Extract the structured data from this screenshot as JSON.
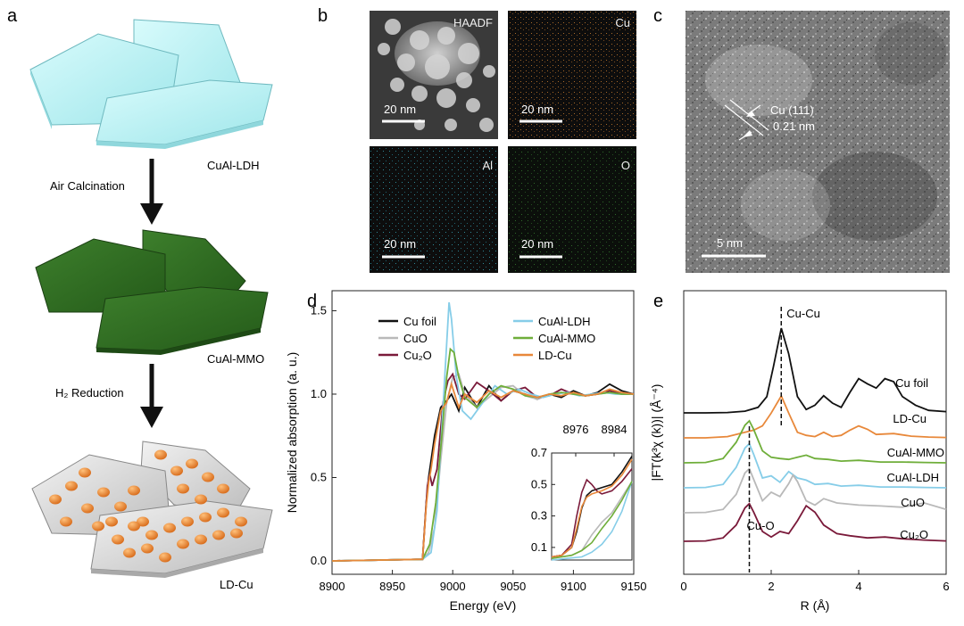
{
  "panel_labels": {
    "a": "a",
    "b": "b",
    "c": "c",
    "d": "d",
    "e": "e"
  },
  "panel_a": {
    "materials": [
      "CuAl-LDH",
      "CuAl-MMO",
      "LD-Cu"
    ],
    "steps": [
      "Air Calcination",
      "H₂ Reduction"
    ],
    "colors": {
      "ldh": "#bdf2f4",
      "mmo": "#2f6b22",
      "ldcu_plate": "#d5d5d5",
      "particle": "#f0903a"
    }
  },
  "panel_b": {
    "tiles": [
      {
        "label": "HAADF",
        "scale": "20 nm"
      },
      {
        "label": "Cu",
        "scale": "20 nm"
      },
      {
        "label": "Al",
        "scale": "20 nm"
      },
      {
        "label": "O",
        "scale": "20 nm"
      }
    ],
    "colors": {
      "Cu": "#c8823a",
      "Al": "#3aa6b8",
      "O": "#3f8f3a"
    }
  },
  "panel_c": {
    "annotation": "Cu (111)",
    "spacing": "0.21 nm",
    "scale": "5 nm"
  },
  "chart_data": [
    {
      "type": "line",
      "panel": "d",
      "xlabel": "Energy (eV)",
      "ylabel": "Normalized absorption (a. u.)",
      "xlim": [
        8900,
        9150
      ],
      "ylim": [
        -0.08,
        1.62
      ],
      "xticks": [
        8900,
        8950,
        9000,
        9050,
        9100,
        9150
      ],
      "yticks": [
        0.0,
        0.5,
        1.0,
        1.5
      ],
      "legend_placement": "top",
      "series": [
        {
          "name": "Cu foil",
          "color": "#111111",
          "x": [
            8900,
            8975,
            8978,
            8980,
            8982,
            8985,
            8990,
            8995,
            8999,
            9005,
            9010,
            9020,
            9030,
            9040,
            9050,
            9060,
            9070,
            9080,
            9090,
            9100,
            9110,
            9120,
            9130,
            9140,
            9150
          ],
          "y": [
            0,
            0.01,
            0.35,
            0.5,
            0.6,
            0.75,
            0.92,
            0.96,
            1.0,
            0.9,
            1.04,
            0.92,
            1.05,
            0.96,
            1.02,
            1.0,
            0.97,
            1.0,
            0.98,
            1.02,
            0.99,
            1.01,
            1.06,
            1.02,
            1.0
          ]
        },
        {
          "name": "CuO",
          "color": "#b9b9b9",
          "x": [
            8900,
            8975,
            8980,
            8985,
            8990,
            8995,
            9000,
            9005,
            9010,
            9020,
            9030,
            9040,
            9050,
            9060,
            9070,
            9080,
            9090,
            9100,
            9110,
            9120,
            9130,
            9140,
            9150
          ],
          "y": [
            0,
            0.01,
            0.05,
            0.2,
            0.6,
            0.95,
            1.1,
            1.12,
            1.0,
            0.92,
            0.98,
            1.04,
            1.05,
            0.99,
            0.97,
            1.0,
            1.01,
            1.0,
            0.99,
            1.0,
            1.01,
            1.0,
            1.0
          ]
        },
        {
          "name": "Cu₂O",
          "color": "#7a1a3a",
          "x": [
            8900,
            8975,
            8979,
            8981,
            8983,
            8987,
            8992,
            8996,
            9000,
            9005,
            9010,
            9020,
            9030,
            9040,
            9050,
            9060,
            9070,
            9080,
            9090,
            9100,
            9110,
            9120,
            9130,
            9140,
            9150
          ],
          "y": [
            0,
            0.01,
            0.45,
            0.52,
            0.45,
            0.55,
            0.95,
            1.08,
            1.12,
            1.0,
            0.97,
            1.07,
            1.02,
            0.96,
            1.02,
            1.04,
            0.98,
            0.99,
            1.03,
            1.0,
            0.99,
            1.0,
            1.02,
            1.0,
            1.0
          ]
        },
        {
          "name": "CuAl-LDH",
          "color": "#86cde8",
          "x": [
            8900,
            8975,
            8982,
            8987,
            8991,
            8995,
            8997,
            8999,
            9003,
            9008,
            9015,
            9025,
            9035,
            9045,
            9055,
            9065,
            9075,
            9085,
            9095,
            9105,
            9115,
            9125,
            9135,
            9150
          ],
          "y": [
            0,
            0.01,
            0.05,
            0.3,
            0.8,
            1.3,
            1.55,
            1.45,
            1.1,
            0.9,
            0.85,
            0.95,
            1.05,
            1.0,
            1.03,
            1.0,
            0.98,
            1.0,
            1.01,
            0.99,
            1.0,
            1.01,
            1.0,
            1.0
          ]
        },
        {
          "name": "CuAl-MMO",
          "color": "#6fae3a",
          "x": [
            8900,
            8975,
            8981,
            8986,
            8991,
            8995,
            8998,
            9001,
            9005,
            9010,
            9020,
            9030,
            9040,
            9050,
            9060,
            9070,
            9080,
            9090,
            9100,
            9110,
            9120,
            9130,
            9140,
            9150
          ],
          "y": [
            0,
            0.01,
            0.1,
            0.35,
            0.75,
            1.1,
            1.27,
            1.25,
            1.1,
            0.98,
            0.92,
            1.0,
            1.05,
            1.03,
            0.99,
            0.98,
            1.0,
            1.01,
            1.0,
            0.99,
            1.0,
            1.01,
            1.0,
            1.0
          ]
        },
        {
          "name": "LD-Cu",
          "color": "#e8883a",
          "x": [
            8900,
            8975,
            8978,
            8980,
            8982,
            8985,
            8990,
            8995,
            8999,
            9005,
            9010,
            9020,
            9030,
            9040,
            9050,
            9060,
            9070,
            9080,
            9090,
            9100,
            9110,
            9120,
            9130,
            9140,
            9150
          ],
          "y": [
            0,
            0.01,
            0.33,
            0.47,
            0.55,
            0.7,
            0.9,
            0.95,
            1.06,
            0.92,
            1.0,
            0.95,
            1.02,
            0.98,
            1.02,
            1.0,
            0.98,
            1.0,
            0.99,
            1.01,
            0.99,
            1.0,
            1.03,
            1.01,
            1.0
          ]
        }
      ],
      "inset": {
        "xlim": [
          8972,
          8988
        ],
        "ylim": [
          0.02,
          0.7
        ],
        "xticks": [
          8976,
          8984
        ],
        "yticks": [
          0.1,
          0.3,
          0.5,
          0.7
        ],
        "series": [
          {
            "name": "Cu foil",
            "x": [
              8972,
              8974,
              8976,
              8977,
              8978,
              8979,
              8980,
              8982,
              8984,
              8986,
              8988
            ],
            "y": [
              0.04,
              0.05,
              0.1,
              0.2,
              0.35,
              0.43,
              0.46,
              0.48,
              0.5,
              0.58,
              0.68
            ]
          },
          {
            "name": "CuO",
            "x": [
              8972,
              8976,
              8978,
              8980,
              8982,
              8984,
              8986,
              8988
            ],
            "y": [
              0.03,
              0.05,
              0.08,
              0.18,
              0.26,
              0.32,
              0.42,
              0.52
            ]
          },
          {
            "name": "Cu₂O",
            "x": [
              8972,
              8974,
              8976,
              8977,
              8978,
              8979,
              8980,
              8981,
              8982,
              8984,
              8986,
              8988
            ],
            "y": [
              0.04,
              0.05,
              0.12,
              0.3,
              0.45,
              0.53,
              0.5,
              0.46,
              0.44,
              0.46,
              0.52,
              0.6
            ]
          },
          {
            "name": "CuAl-LDH",
            "x": [
              8972,
              8978,
              8980,
              8982,
              8984,
              8986,
              8988
            ],
            "y": [
              0.02,
              0.04,
              0.07,
              0.12,
              0.2,
              0.33,
              0.52
            ]
          },
          {
            "name": "CuAl-MMO",
            "x": [
              8972,
              8976,
              8978,
              8980,
              8982,
              8984,
              8986,
              8988
            ],
            "y": [
              0.03,
              0.05,
              0.08,
              0.13,
              0.22,
              0.3,
              0.4,
              0.52
            ]
          },
          {
            "name": "LD-Cu",
            "x": [
              8972,
              8974,
              8976,
              8977,
              8978,
              8979,
              8980,
              8982,
              8984,
              8986,
              8988
            ],
            "y": [
              0.04,
              0.05,
              0.1,
              0.22,
              0.36,
              0.42,
              0.44,
              0.46,
              0.49,
              0.56,
              0.66
            ]
          }
        ]
      }
    },
    {
      "type": "line",
      "panel": "e",
      "xlabel": "R (Å)",
      "ylabel": "|FT(k³χ (k))| (Å⁻⁴)",
      "xlim": [
        0,
        6
      ],
      "xticks": [
        0,
        2,
        4,
        6
      ],
      "annotations": [
        "Cu-Cu",
        "Cu-O"
      ],
      "dashed_lines": [
        2.23,
        1.5
      ],
      "series": [
        {
          "name": "Cu foil",
          "color": "#111111",
          "offset": 5,
          "x": [
            0,
            0.5,
            1.0,
            1.4,
            1.7,
            1.9,
            2.05,
            2.23,
            2.4,
            2.6,
            2.8,
            3.0,
            3.2,
            3.4,
            3.6,
            3.8,
            4.0,
            4.2,
            4.4,
            4.6,
            4.8,
            5.0,
            5.3,
            5.6,
            6.0
          ],
          "y": [
            0.02,
            0.02,
            0.03,
            0.06,
            0.15,
            0.4,
            1.1,
            2.0,
            1.4,
            0.4,
            0.1,
            0.2,
            0.42,
            0.25,
            0.15,
            0.5,
            0.82,
            0.7,
            0.6,
            0.82,
            0.75,
            0.4,
            0.2,
            0.08,
            0.05
          ]
        },
        {
          "name": "LD-Cu",
          "color": "#e8883a",
          "offset": 4,
          "x": [
            0,
            0.5,
            1.0,
            1.4,
            1.6,
            1.8,
            2.0,
            2.23,
            2.4,
            2.6,
            2.8,
            3.0,
            3.2,
            3.4,
            3.6,
            3.8,
            4.0,
            4.2,
            4.4,
            4.8,
            5.2,
            5.6,
            6.0
          ],
          "y": [
            0.02,
            0.02,
            0.05,
            0.15,
            0.2,
            0.3,
            0.6,
            1.0,
            0.6,
            0.15,
            0.08,
            0.05,
            0.15,
            0.05,
            0.08,
            0.2,
            0.3,
            0.22,
            0.1,
            0.12,
            0.06,
            0.04,
            0.03
          ]
        },
        {
          "name": "CuAl-MMO",
          "color": "#6fae3a",
          "offset": 3,
          "x": [
            0,
            0.5,
            0.9,
            1.2,
            1.4,
            1.5,
            1.6,
            1.8,
            2.0,
            2.2,
            2.4,
            2.6,
            2.8,
            3.0,
            3.3,
            3.6,
            4.0,
            4.5,
            5.0,
            5.5,
            6.0
          ],
          "y": [
            0.02,
            0.03,
            0.12,
            0.5,
            0.9,
            1.0,
            0.8,
            0.3,
            0.15,
            0.12,
            0.1,
            0.15,
            0.2,
            0.12,
            0.1,
            0.06,
            0.08,
            0.04,
            0.04,
            0.03,
            0.02
          ]
        },
        {
          "name": "CuAl-LDH",
          "color": "#86cde8",
          "offset": 2,
          "x": [
            0,
            0.5,
            0.9,
            1.2,
            1.4,
            1.5,
            1.6,
            1.8,
            2.0,
            2.2,
            2.4,
            2.6,
            2.8,
            3.0,
            3.3,
            3.6,
            4.0,
            4.5,
            5.0,
            5.5,
            6.0
          ],
          "y": [
            0.02,
            0.03,
            0.1,
            0.5,
            0.95,
            1.05,
            0.8,
            0.25,
            0.3,
            0.15,
            0.4,
            0.25,
            0.2,
            0.1,
            0.12,
            0.06,
            0.08,
            0.04,
            0.04,
            0.03,
            0.02
          ]
        },
        {
          "name": "CuO",
          "color": "#b9b9b9",
          "offset": 1,
          "x": [
            0,
            0.5,
            0.9,
            1.2,
            1.4,
            1.5,
            1.6,
            1.8,
            2.0,
            2.2,
            2.4,
            2.5,
            2.6,
            2.8,
            3.0,
            3.2,
            3.5,
            4.0,
            4.5,
            5.0,
            5.5,
            6.0
          ],
          "y": [
            0.02,
            0.03,
            0.1,
            0.45,
            0.95,
            1.05,
            0.8,
            0.3,
            0.5,
            0.4,
            0.7,
            0.9,
            0.75,
            0.3,
            0.2,
            0.35,
            0.25,
            0.2,
            0.18,
            0.15,
            0.25,
            0.1
          ]
        },
        {
          "name": "Cu₂O",
          "color": "#7a1a3a",
          "offset": 0,
          "x": [
            0,
            0.5,
            0.9,
            1.2,
            1.4,
            1.5,
            1.6,
            1.8,
            2.0,
            2.2,
            2.4,
            2.6,
            2.8,
            3.0,
            3.2,
            3.5,
            3.8,
            4.2,
            4.6,
            5.0,
            5.5,
            6.0
          ],
          "y": [
            0.02,
            0.03,
            0.1,
            0.4,
            0.8,
            0.9,
            0.7,
            0.25,
            0.12,
            0.25,
            0.2,
            0.5,
            0.85,
            0.7,
            0.4,
            0.2,
            0.15,
            0.1,
            0.12,
            0.08,
            0.05,
            0.03
          ]
        }
      ]
    }
  ]
}
